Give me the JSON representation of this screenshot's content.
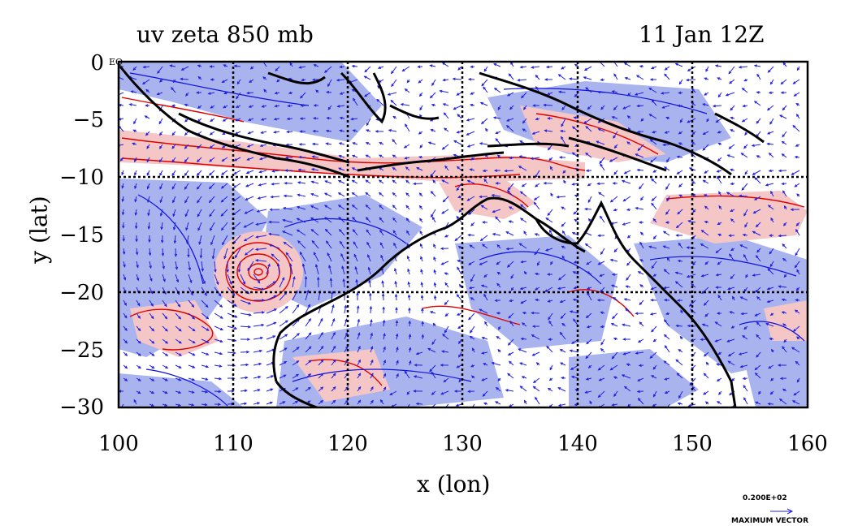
{
  "title": {
    "left": "uv zeta 850 mb",
    "right": "11 Jan 12Z"
  },
  "axes": {
    "xlabel": "x (lon)",
    "ylabel": "y (lat)",
    "xticks": [
      "100",
      "110",
      "120",
      "130",
      "140",
      "150",
      "160"
    ],
    "yticks": [
      "0",
      "−5",
      "−10",
      "−15",
      "−20",
      "−25",
      "−30"
    ],
    "xlim": [
      100,
      160
    ],
    "ylim": [
      -30,
      0
    ]
  },
  "equator_tag": "EQ",
  "legend": {
    "value": "0.200E+02",
    "label": "MAXIMUM VECTOR"
  },
  "colors": {
    "positive_fill": "#f5c6c6",
    "positive_contour": "#e00000",
    "negative_fill": "#a9b4ee",
    "negative_contour": "#1010e0",
    "vectors": "#2020e0",
    "coast": "#000000"
  },
  "features": {
    "cyclone_center": {
      "lon": 112.5,
      "lat": -18.2
    }
  }
}
